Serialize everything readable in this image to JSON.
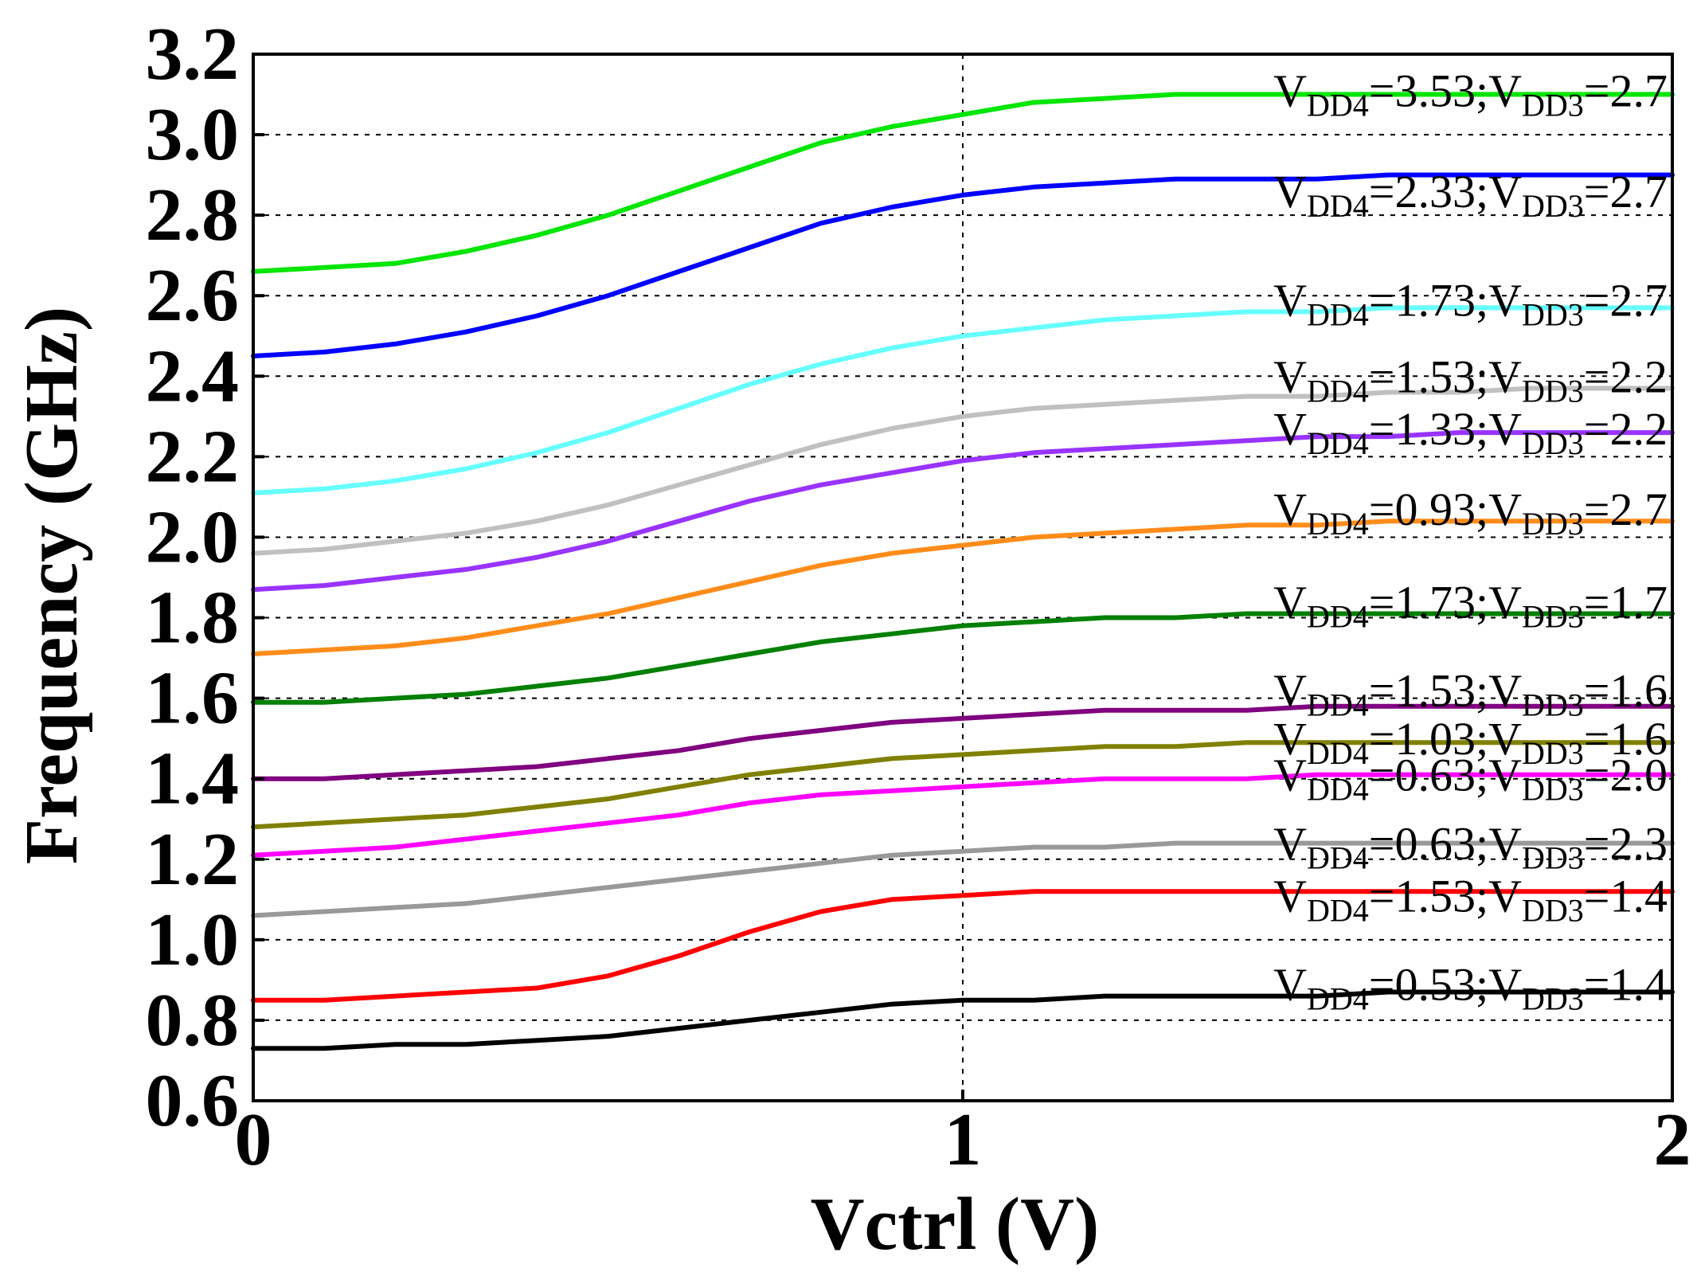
{
  "chart_data": {
    "type": "line",
    "xlabel": "Vctrl (V)",
    "ylabel": "Frequency (GHz)",
    "xlim": [
      0,
      2
    ],
    "ylim": [
      0.6,
      3.2
    ],
    "xticks": [
      "0",
      "1",
      "2"
    ],
    "yticks": [
      "0.6",
      "0.8",
      "1.0",
      "1.2",
      "1.4",
      "1.6",
      "1.8",
      "2.0",
      "2.2",
      "2.4",
      "2.6",
      "2.8",
      "3.0",
      "3.2"
    ],
    "grid": "dashed, horizontal at each y tick and vertical at x = 1",
    "x": [
      0,
      0.1,
      0.2,
      0.3,
      0.4,
      0.5,
      0.6,
      0.7,
      0.8,
      0.9,
      1.0,
      1.1,
      1.2,
      1.3,
      1.4,
      1.5,
      1.6,
      1.7,
      1.8,
      1.9,
      2.0
    ],
    "series": [
      {
        "name": "VDD4=3.53;VDD3=2.7",
        "vdd4": "3.53",
        "vdd3": "2.7",
        "color": "#00e600",
        "values": [
          2.66,
          2.67,
          2.68,
          2.71,
          2.75,
          2.8,
          2.86,
          2.92,
          2.98,
          3.02,
          3.05,
          3.08,
          3.09,
          3.1,
          3.1,
          3.1,
          3.1,
          3.1,
          3.1,
          3.1,
          3.1
        ]
      },
      {
        "name": "VDD4=2.33;VDD3=2.7",
        "vdd4": "2.33",
        "vdd3": "2.7",
        "color": "#0000ff",
        "values": [
          2.45,
          2.46,
          2.48,
          2.51,
          2.55,
          2.6,
          2.66,
          2.72,
          2.78,
          2.82,
          2.85,
          2.87,
          2.88,
          2.89,
          2.89,
          2.89,
          2.9,
          2.9,
          2.9,
          2.9,
          2.9
        ]
      },
      {
        "name": "VDD4=1.73;VDD3=2.7",
        "vdd4": "1.73",
        "vdd3": "2.7",
        "color": "#66ffff",
        "values": [
          2.11,
          2.12,
          2.14,
          2.17,
          2.21,
          2.26,
          2.32,
          2.38,
          2.43,
          2.47,
          2.5,
          2.52,
          2.54,
          2.55,
          2.56,
          2.56,
          2.57,
          2.57,
          2.57,
          2.57,
          2.57
        ]
      },
      {
        "name": "VDD4=1.53;VDD3=2.2",
        "vdd4": "1.53",
        "vdd3": "2.2",
        "color": "#c0c0c0",
        "values": [
          1.96,
          1.97,
          1.99,
          2.01,
          2.04,
          2.08,
          2.13,
          2.18,
          2.23,
          2.27,
          2.3,
          2.32,
          2.33,
          2.34,
          2.35,
          2.35,
          2.36,
          2.36,
          2.37,
          2.37,
          2.37
        ]
      },
      {
        "name": "VDD4=1.33;VDD3=2.2",
        "vdd4": "1.33",
        "vdd3": "2.2",
        "color": "#9933ff",
        "values": [
          1.87,
          1.88,
          1.9,
          1.92,
          1.95,
          1.99,
          2.04,
          2.09,
          2.13,
          2.16,
          2.19,
          2.21,
          2.22,
          2.23,
          2.24,
          2.25,
          2.25,
          2.26,
          2.26,
          2.26,
          2.26
        ]
      },
      {
        "name": "VDD4=0.93;VDD3=2.7",
        "vdd4": "0.93",
        "vdd3": "2.7",
        "color": "#ff8c1a",
        "values": [
          1.71,
          1.72,
          1.73,
          1.75,
          1.78,
          1.81,
          1.85,
          1.89,
          1.93,
          1.96,
          1.98,
          2.0,
          2.01,
          2.02,
          2.03,
          2.03,
          2.04,
          2.04,
          2.04,
          2.04,
          2.04
        ]
      },
      {
        "name": "VDD4=1.73;VDD3=1.7",
        "vdd4": "1.73",
        "vdd3": "1.7",
        "color": "#008000",
        "values": [
          1.59,
          1.59,
          1.6,
          1.61,
          1.63,
          1.65,
          1.68,
          1.71,
          1.74,
          1.76,
          1.78,
          1.79,
          1.8,
          1.8,
          1.81,
          1.81,
          1.81,
          1.81,
          1.81,
          1.81,
          1.81
        ]
      },
      {
        "name": "VDD4=1.53;VDD3=1.6",
        "vdd4": "1.53",
        "vdd3": "1.6",
        "color": "#800080",
        "values": [
          1.4,
          1.4,
          1.41,
          1.42,
          1.43,
          1.45,
          1.47,
          1.5,
          1.52,
          1.54,
          1.55,
          1.56,
          1.57,
          1.57,
          1.57,
          1.58,
          1.58,
          1.58,
          1.58,
          1.58,
          1.58
        ]
      },
      {
        "name": "VDD4=1.03;VDD3=1.6",
        "vdd4": "1.03",
        "vdd3": "1.6",
        "color": "#808000",
        "values": [
          1.28,
          1.29,
          1.3,
          1.31,
          1.33,
          1.35,
          1.38,
          1.41,
          1.43,
          1.45,
          1.46,
          1.47,
          1.48,
          1.48,
          1.49,
          1.49,
          1.49,
          1.49,
          1.49,
          1.49,
          1.49
        ]
      },
      {
        "name": "VDD4=0.63;VDD3=2.0",
        "vdd4": "0.63",
        "vdd3": "2.0",
        "color": "#ff00ff",
        "values": [
          1.21,
          1.22,
          1.23,
          1.25,
          1.27,
          1.29,
          1.31,
          1.34,
          1.36,
          1.37,
          1.38,
          1.39,
          1.4,
          1.4,
          1.4,
          1.41,
          1.41,
          1.41,
          1.41,
          1.41,
          1.41
        ]
      },
      {
        "name": "VDD4=0.63;VDD3=2.3",
        "vdd4": "0.63",
        "vdd3": "2.3",
        "color": "#999999",
        "values": [
          1.06,
          1.07,
          1.08,
          1.09,
          1.11,
          1.13,
          1.15,
          1.17,
          1.19,
          1.21,
          1.22,
          1.23,
          1.23,
          1.24,
          1.24,
          1.24,
          1.24,
          1.24,
          1.24,
          1.24,
          1.24
        ]
      },
      {
        "name": "VDD4=1.53;VDD3=1.4",
        "vdd4": "1.53",
        "vdd3": "1.4",
        "color": "#ff0000",
        "values": [
          0.85,
          0.85,
          0.86,
          0.87,
          0.88,
          0.91,
          0.96,
          1.02,
          1.07,
          1.1,
          1.11,
          1.12,
          1.12,
          1.12,
          1.12,
          1.12,
          1.12,
          1.12,
          1.12,
          1.12,
          1.12
        ]
      },
      {
        "name": "VDD4=0.53;VDD3=1.4",
        "vdd4": "0.53",
        "vdd3": "1.4",
        "color": "#000000",
        "values": [
          0.73,
          0.73,
          0.74,
          0.74,
          0.75,
          0.76,
          0.78,
          0.8,
          0.82,
          0.84,
          0.85,
          0.85,
          0.86,
          0.86,
          0.86,
          0.86,
          0.87,
          0.87,
          0.87,
          0.87,
          0.87
        ]
      }
    ],
    "labels": [
      {
        "vdd4": "3.53",
        "vdd3": "2.7",
        "y": 3.11
      },
      {
        "vdd4": "2.33",
        "vdd3": "2.7",
        "y": 2.86
      },
      {
        "vdd4": "1.73",
        "vdd3": "2.7",
        "y": 2.59
      },
      {
        "vdd4": "1.53",
        "vdd3": "2.2",
        "y": 2.4
      },
      {
        "vdd4": "1.33",
        "vdd3": "2.2",
        "y": 2.27
      },
      {
        "vdd4": "0.93",
        "vdd3": "2.7",
        "y": 2.07
      },
      {
        "vdd4": "1.73",
        "vdd3": "1.7",
        "y": 1.84
      },
      {
        "vdd4": "1.53",
        "vdd3": "1.6",
        "y": 1.62
      },
      {
        "vdd4": "1.03",
        "vdd3": "1.6",
        "y": 1.5
      },
      {
        "vdd4": "0.63",
        "vdd3": "2.0",
        "y": 1.41
      },
      {
        "vdd4": "0.63",
        "vdd3": "2.3",
        "y": 1.24
      },
      {
        "vdd4": "1.53",
        "vdd3": "1.4",
        "y": 1.11
      },
      {
        "vdd4": "0.53",
        "vdd3": "1.4",
        "y": 0.89
      }
    ],
    "label_format": {
      "v": "V",
      "sub4": "DD4",
      "mid": ";",
      "sub3": "DD3",
      "eq": "="
    }
  }
}
